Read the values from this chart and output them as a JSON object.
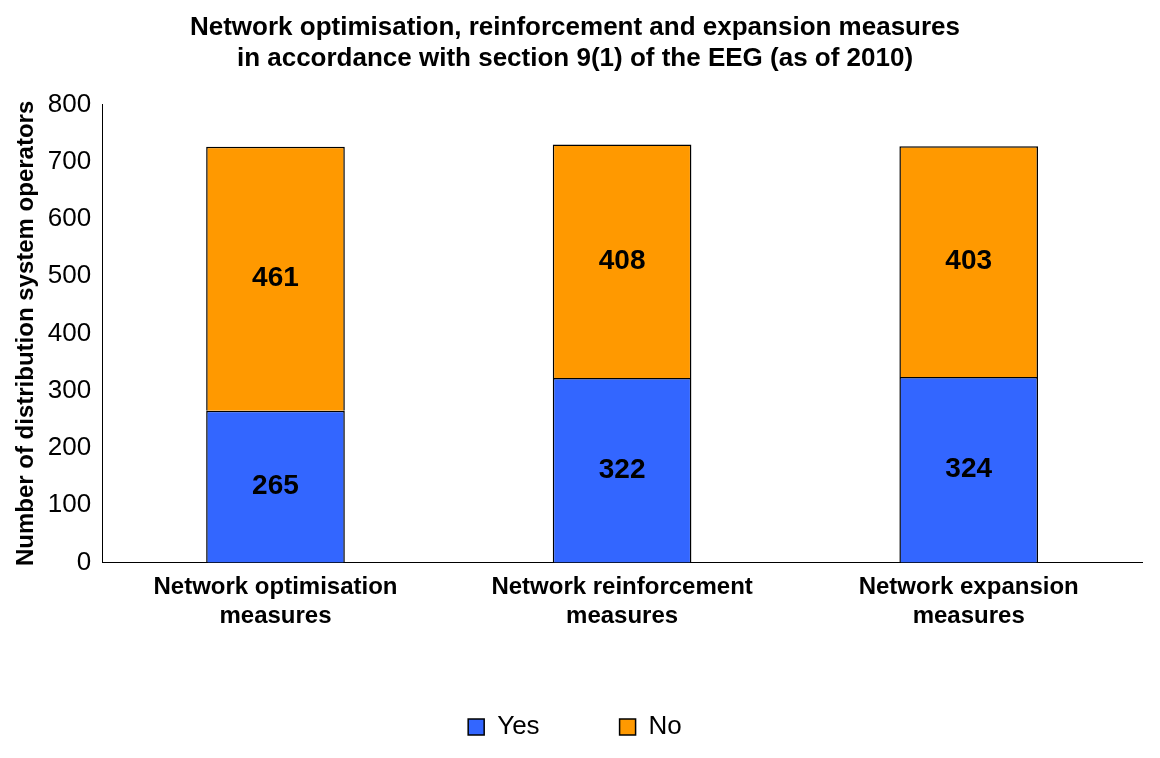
{
  "chart_data": {
    "type": "bar",
    "title": "Network optimisation, reinforcement and expansion measures in accordance with section 9(1) of the EEG (as of 2010)",
    "ylabel": "Number of distribution system operators",
    "categories": [
      "Network optimisation measures",
      "Network reinforcement measures",
      "Network expansion measures"
    ],
    "stacked": true,
    "series": [
      {
        "name": "Yes",
        "color": "#3366ff",
        "values": [
          265,
          322,
          324
        ]
      },
      {
        "name": "No",
        "color": "#ff9900",
        "values": [
          461,
          408,
          403
        ]
      }
    ],
    "ylim": [
      0,
      800
    ],
    "yticks": [
      0,
      100,
      200,
      300,
      400,
      500,
      600,
      700,
      800
    ],
    "grid": false,
    "legend": "bottom",
    "data_labels": true
  }
}
